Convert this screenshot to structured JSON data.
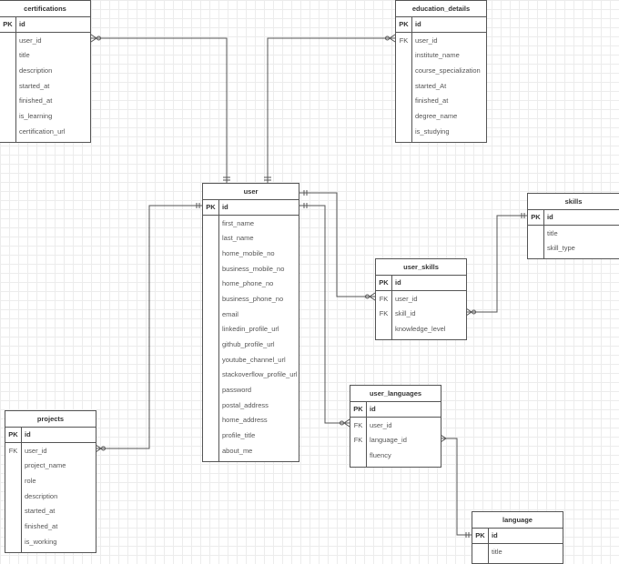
{
  "tables": [
    {
      "name": "certifications",
      "pk": "id",
      "fields": [
        {
          "key": "",
          "name": "user_id"
        },
        {
          "key": "",
          "name": "title"
        },
        {
          "key": "",
          "name": "description"
        },
        {
          "key": "",
          "name": "started_at"
        },
        {
          "key": "",
          "name": "finished_at"
        },
        {
          "key": "",
          "name": "is_learning"
        },
        {
          "key": "",
          "name": "certification_url"
        }
      ]
    },
    {
      "name": "education_details",
      "pk": "id",
      "fields": [
        {
          "key": "FK",
          "name": "user_id"
        },
        {
          "key": "",
          "name": "institute_name"
        },
        {
          "key": "",
          "name": "course_specialization"
        },
        {
          "key": "",
          "name": "started_At"
        },
        {
          "key": "",
          "name": "finished_at"
        },
        {
          "key": "",
          "name": "degree_name"
        },
        {
          "key": "",
          "name": "is_studying"
        }
      ]
    },
    {
      "name": "user",
      "pk": "id",
      "fields": [
        {
          "key": "",
          "name": "first_name"
        },
        {
          "key": "",
          "name": "last_name"
        },
        {
          "key": "",
          "name": "home_mobile_no"
        },
        {
          "key": "",
          "name": "business_mobile_no"
        },
        {
          "key": "",
          "name": "home_phone_no"
        },
        {
          "key": "",
          "name": "business_phone_no"
        },
        {
          "key": "",
          "name": "email"
        },
        {
          "key": "",
          "name": "linkedin_profile_url"
        },
        {
          "key": "",
          "name": "github_profile_url"
        },
        {
          "key": "",
          "name": "youtube_channel_url"
        },
        {
          "key": "",
          "name": "stackoverflow_profile_url"
        },
        {
          "key": "",
          "name": "password"
        },
        {
          "key": "",
          "name": "postal_address"
        },
        {
          "key": "",
          "name": "home_address"
        },
        {
          "key": "",
          "name": "profile_title"
        },
        {
          "key": "",
          "name": "about_me"
        }
      ]
    },
    {
      "name": "skills",
      "pk": "id",
      "fields": [
        {
          "key": "",
          "name": "title"
        },
        {
          "key": "",
          "name": "skill_type"
        }
      ]
    },
    {
      "name": "user_skills",
      "pk": "id",
      "fields": [
        {
          "key": "FK",
          "name": "user_id"
        },
        {
          "key": "FK",
          "name": "skill_id"
        },
        {
          "key": "",
          "name": "knowledge_level"
        }
      ]
    },
    {
      "name": "user_languages",
      "pk": "id",
      "fields": [
        {
          "key": "FK",
          "name": "user_id"
        },
        {
          "key": "FK",
          "name": "language_id"
        },
        {
          "key": "",
          "name": "fluency"
        }
      ]
    },
    {
      "name": "projects",
      "pk": "id",
      "fields": [
        {
          "key": "FK",
          "name": "user_id"
        },
        {
          "key": "",
          "name": "project_name"
        },
        {
          "key": "",
          "name": "role"
        },
        {
          "key": "",
          "name": "description"
        },
        {
          "key": "",
          "name": "started_at"
        },
        {
          "key": "",
          "name": "finished_at"
        },
        {
          "key": "",
          "name": "is_working"
        }
      ]
    },
    {
      "name": "language",
      "pk": "id",
      "fields": [
        {
          "key": "",
          "name": "title"
        }
      ]
    }
  ],
  "pk_label": "PK",
  "colors": {
    "line": "#555555",
    "grid": "#ececec"
  }
}
